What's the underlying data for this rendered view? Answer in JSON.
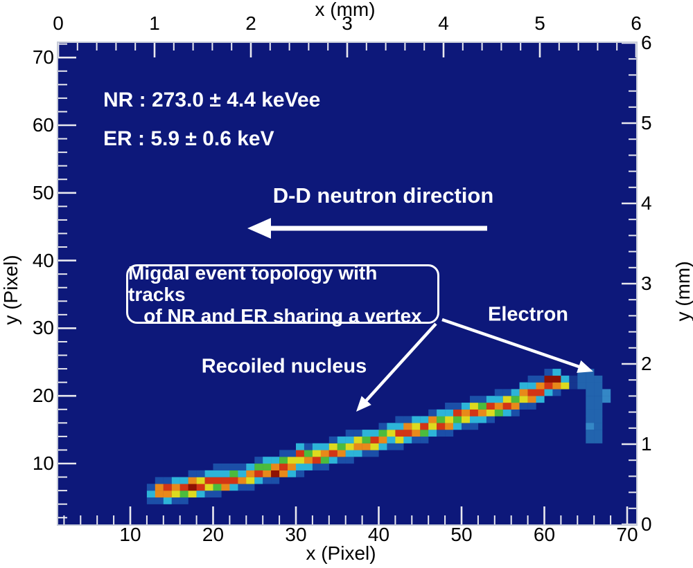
{
  "chart_data": {
    "type": "heatmap",
    "description": "2D pixel-intensity map (jet colormap on dark navy zero-level) showing a Migdal event: a bright nuclear-recoil track rising from lower-left to upper-right and a faint electron-recoil blob sharing a vertex at the track end. No colorbar is shown; z values are encoded as colors only.",
    "plot_bg": "#0d187a",
    "frame_color": "#c6cbd8",
    "tick_color": "#e9e9ef",
    "axes": {
      "top": {
        "title": "x (mm)",
        "tick_values": [
          0,
          1,
          2,
          3,
          4,
          5,
          6
        ],
        "range": [
          0,
          6
        ],
        "minor_step": 0.2
      },
      "bottom": {
        "title": "x (Pixel)",
        "tick_values": [
          10,
          20,
          30,
          40,
          50,
          60,
          70
        ],
        "range": [
          1.3,
          71.1
        ],
        "minor_step": 2
      },
      "left": {
        "title": "y (Pixel)",
        "tick_values": [
          10,
          20,
          30,
          40,
          50,
          60,
          70
        ],
        "range": [
          1.0,
          72.2
        ],
        "minor_step": 2
      },
      "right": {
        "title": "y (mm)",
        "tick_values": [
          0,
          1,
          2,
          3,
          4,
          5,
          6
        ],
        "range": [
          0,
          6
        ],
        "minor_step": 0.2
      }
    },
    "palette": {
      "B": "#1b4fa8",
      "C": "#2db4d8",
      "G": "#4cbb3d",
      "Y": "#ddda1f",
      "O": "#e8891a",
      "R": "#d23515",
      "D": "#8e1203",
      "E": "#2264ae",
      "F": "#3487c6",
      "e": "#15368f"
    },
    "palette_legend": {
      "B": "blue fringe",
      "C": "cyan",
      "G": "green",
      "Y": "yellow",
      "O": "orange",
      "R": "red",
      "D": "dark red (max)",
      "E": "electron medium blue",
      "F": "electron light blue",
      "e": "dim blue"
    },
    "nr_track_pixel_extent": {
      "x": [
        12,
        63
      ],
      "y": [
        4,
        23
      ]
    },
    "er_blob_pixel_extent": {
      "x": [
        63,
        68
      ],
      "y": [
        13,
        23
      ]
    },
    "nr_track_columns": [
      [
        12,
        4,
        "BCB"
      ],
      [
        13,
        4,
        "BOOB"
      ],
      [
        14,
        4,
        "CORB"
      ],
      [
        15,
        4,
        "BYOC"
      ],
      [
        16,
        4,
        "BGRC"
      ],
      [
        17,
        5,
        "YDOB"
      ],
      [
        18,
        5,
        "CRYB"
      ],
      [
        19,
        5,
        "BYRC"
      ],
      [
        20,
        5,
        "BGRCB"
      ],
      [
        21,
        6,
        "ORCB"
      ],
      [
        22,
        6,
        "CRGB"
      ],
      [
        23,
        6,
        "BOCB"
      ],
      [
        24,
        6,
        "BYOC"
      ],
      [
        25,
        7,
        "CRGB"
      ],
      [
        26,
        7,
        "BOGC"
      ],
      [
        27,
        7,
        "BDOC"
      ],
      [
        28,
        8,
        "ORGB"
      ],
      [
        29,
        8,
        "COYB"
      ],
      [
        30,
        8,
        "BCYRC"
      ],
      [
        31,
        9,
        "COGB"
      ],
      [
        32,
        9,
        "BRYC"
      ],
      [
        33,
        9,
        "BGOC"
      ],
      [
        34,
        10,
        "CRYB"
      ],
      [
        35,
        10,
        "BOGC"
      ],
      [
        36,
        10,
        "BCYCB"
      ],
      [
        37,
        11,
        "COYB"
      ],
      [
        38,
        11,
        "BOGC"
      ],
      [
        39,
        11,
        "BYRC"
      ],
      [
        40,
        12,
        "COGB"
      ],
      [
        41,
        12,
        "BCYC"
      ],
      [
        42,
        12,
        "BYRCB"
      ],
      [
        43,
        13,
        "CROB"
      ],
      [
        44,
        13,
        "BOYC"
      ],
      [
        45,
        13,
        "BGRC"
      ],
      [
        46,
        14,
        "CYOB"
      ],
      [
        47,
        14,
        "BRGC"
      ],
      [
        48,
        14,
        "BOYCB"
      ],
      [
        49,
        15,
        "CGRB"
      ],
      [
        50,
        15,
        "BYOC"
      ],
      [
        51,
        15,
        "BCRYB"
      ],
      [
        52,
        16,
        "COGB"
      ],
      [
        53,
        16,
        "BYRC"
      ],
      [
        54,
        17,
        "GOCB"
      ],
      [
        55,
        17,
        "CRYB"
      ],
      [
        56,
        17,
        "BOGC"
      ],
      [
        57,
        18,
        "BYOC"
      ],
      [
        58,
        18,
        "BORCB"
      ],
      [
        59,
        19,
        "CROB"
      ],
      [
        60,
        20,
        "CRDB"
      ],
      [
        61,
        20,
        "BODC"
      ],
      [
        62,
        21,
        "YC"
      ]
    ],
    "electron_bins": [
      [
        64,
        23,
        "E"
      ],
      [
        65,
        23,
        "E"
      ],
      [
        63,
        22,
        "e"
      ],
      [
        64,
        22,
        "E"
      ],
      [
        65,
        22,
        "E"
      ],
      [
        66,
        22,
        "E"
      ],
      [
        63,
        21,
        "e"
      ],
      [
        64,
        21,
        "E"
      ],
      [
        65,
        21,
        "E"
      ],
      [
        66,
        21,
        "E"
      ],
      [
        65,
        20,
        "E"
      ],
      [
        66,
        20,
        "E"
      ],
      [
        67,
        20,
        "F"
      ],
      [
        65,
        19,
        "E"
      ],
      [
        66,
        19,
        "E"
      ],
      [
        67,
        19,
        "F"
      ],
      [
        65,
        18,
        "E"
      ],
      [
        66,
        18,
        "E"
      ],
      [
        65,
        17,
        "E"
      ],
      [
        66,
        17,
        "E"
      ],
      [
        65,
        16,
        "E"
      ],
      [
        66,
        16,
        "E"
      ],
      [
        65,
        15,
        "F"
      ],
      [
        66,
        15,
        "E"
      ],
      [
        65,
        14,
        "E"
      ],
      [
        66,
        14,
        "E"
      ],
      [
        65,
        13,
        "E"
      ],
      [
        66,
        13,
        "E"
      ]
    ],
    "annotations": {
      "nr_energy": "NR : 273.0 ± 4.4 keVee",
      "er_energy": "ER : 5.9 ± 0.6 keV",
      "neutron_direction": "D-D neutron direction",
      "topology_line1": "Migdal event topology with tracks",
      "topology_line2": "of NR and ER sharing a vertex",
      "nucleus_label": "Recoiled nucleus",
      "electron_label": "Electron"
    }
  }
}
